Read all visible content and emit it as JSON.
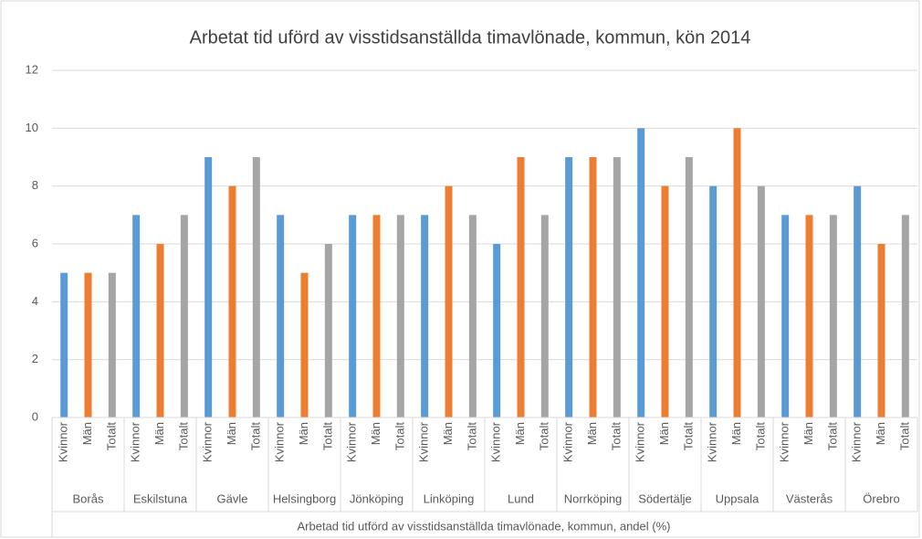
{
  "chart_data": {
    "type": "bar",
    "title": "Arbetat tid uförd av visstidsanställda timavlönade, kommun, kön 2014",
    "x_label": "Arbetad tid utförd av visstidsanställda timavlönade, kommun, andel (%)",
    "categories": [
      "Borås",
      "Eskilstuna",
      "Gävle",
      "Helsingborg",
      "Jönköping",
      "Linköping",
      "Lund",
      "Norrköping",
      "Södertälje",
      "Uppsala",
      "Västerås",
      "Örebro"
    ],
    "series": [
      {
        "name": "Kvinnor",
        "color": "#5b9bd5",
        "values": [
          5,
          7,
          9,
          7,
          7,
          7,
          6,
          9,
          10,
          8,
          7,
          8
        ]
      },
      {
        "name": "Män",
        "color": "#ed7d31",
        "values": [
          5,
          6,
          8,
          5,
          7,
          8,
          9,
          9,
          8,
          10,
          7,
          6
        ]
      },
      {
        "name": "Totalt",
        "color": "#a5a5a5",
        "values": [
          5,
          7,
          9,
          6,
          7,
          7,
          7,
          9,
          9,
          8,
          7,
          7
        ]
      }
    ],
    "ylim": [
      0,
      12
    ],
    "yticks": [
      0,
      2,
      4,
      6,
      8,
      10,
      12
    ],
    "grid": true,
    "legend": false
  }
}
